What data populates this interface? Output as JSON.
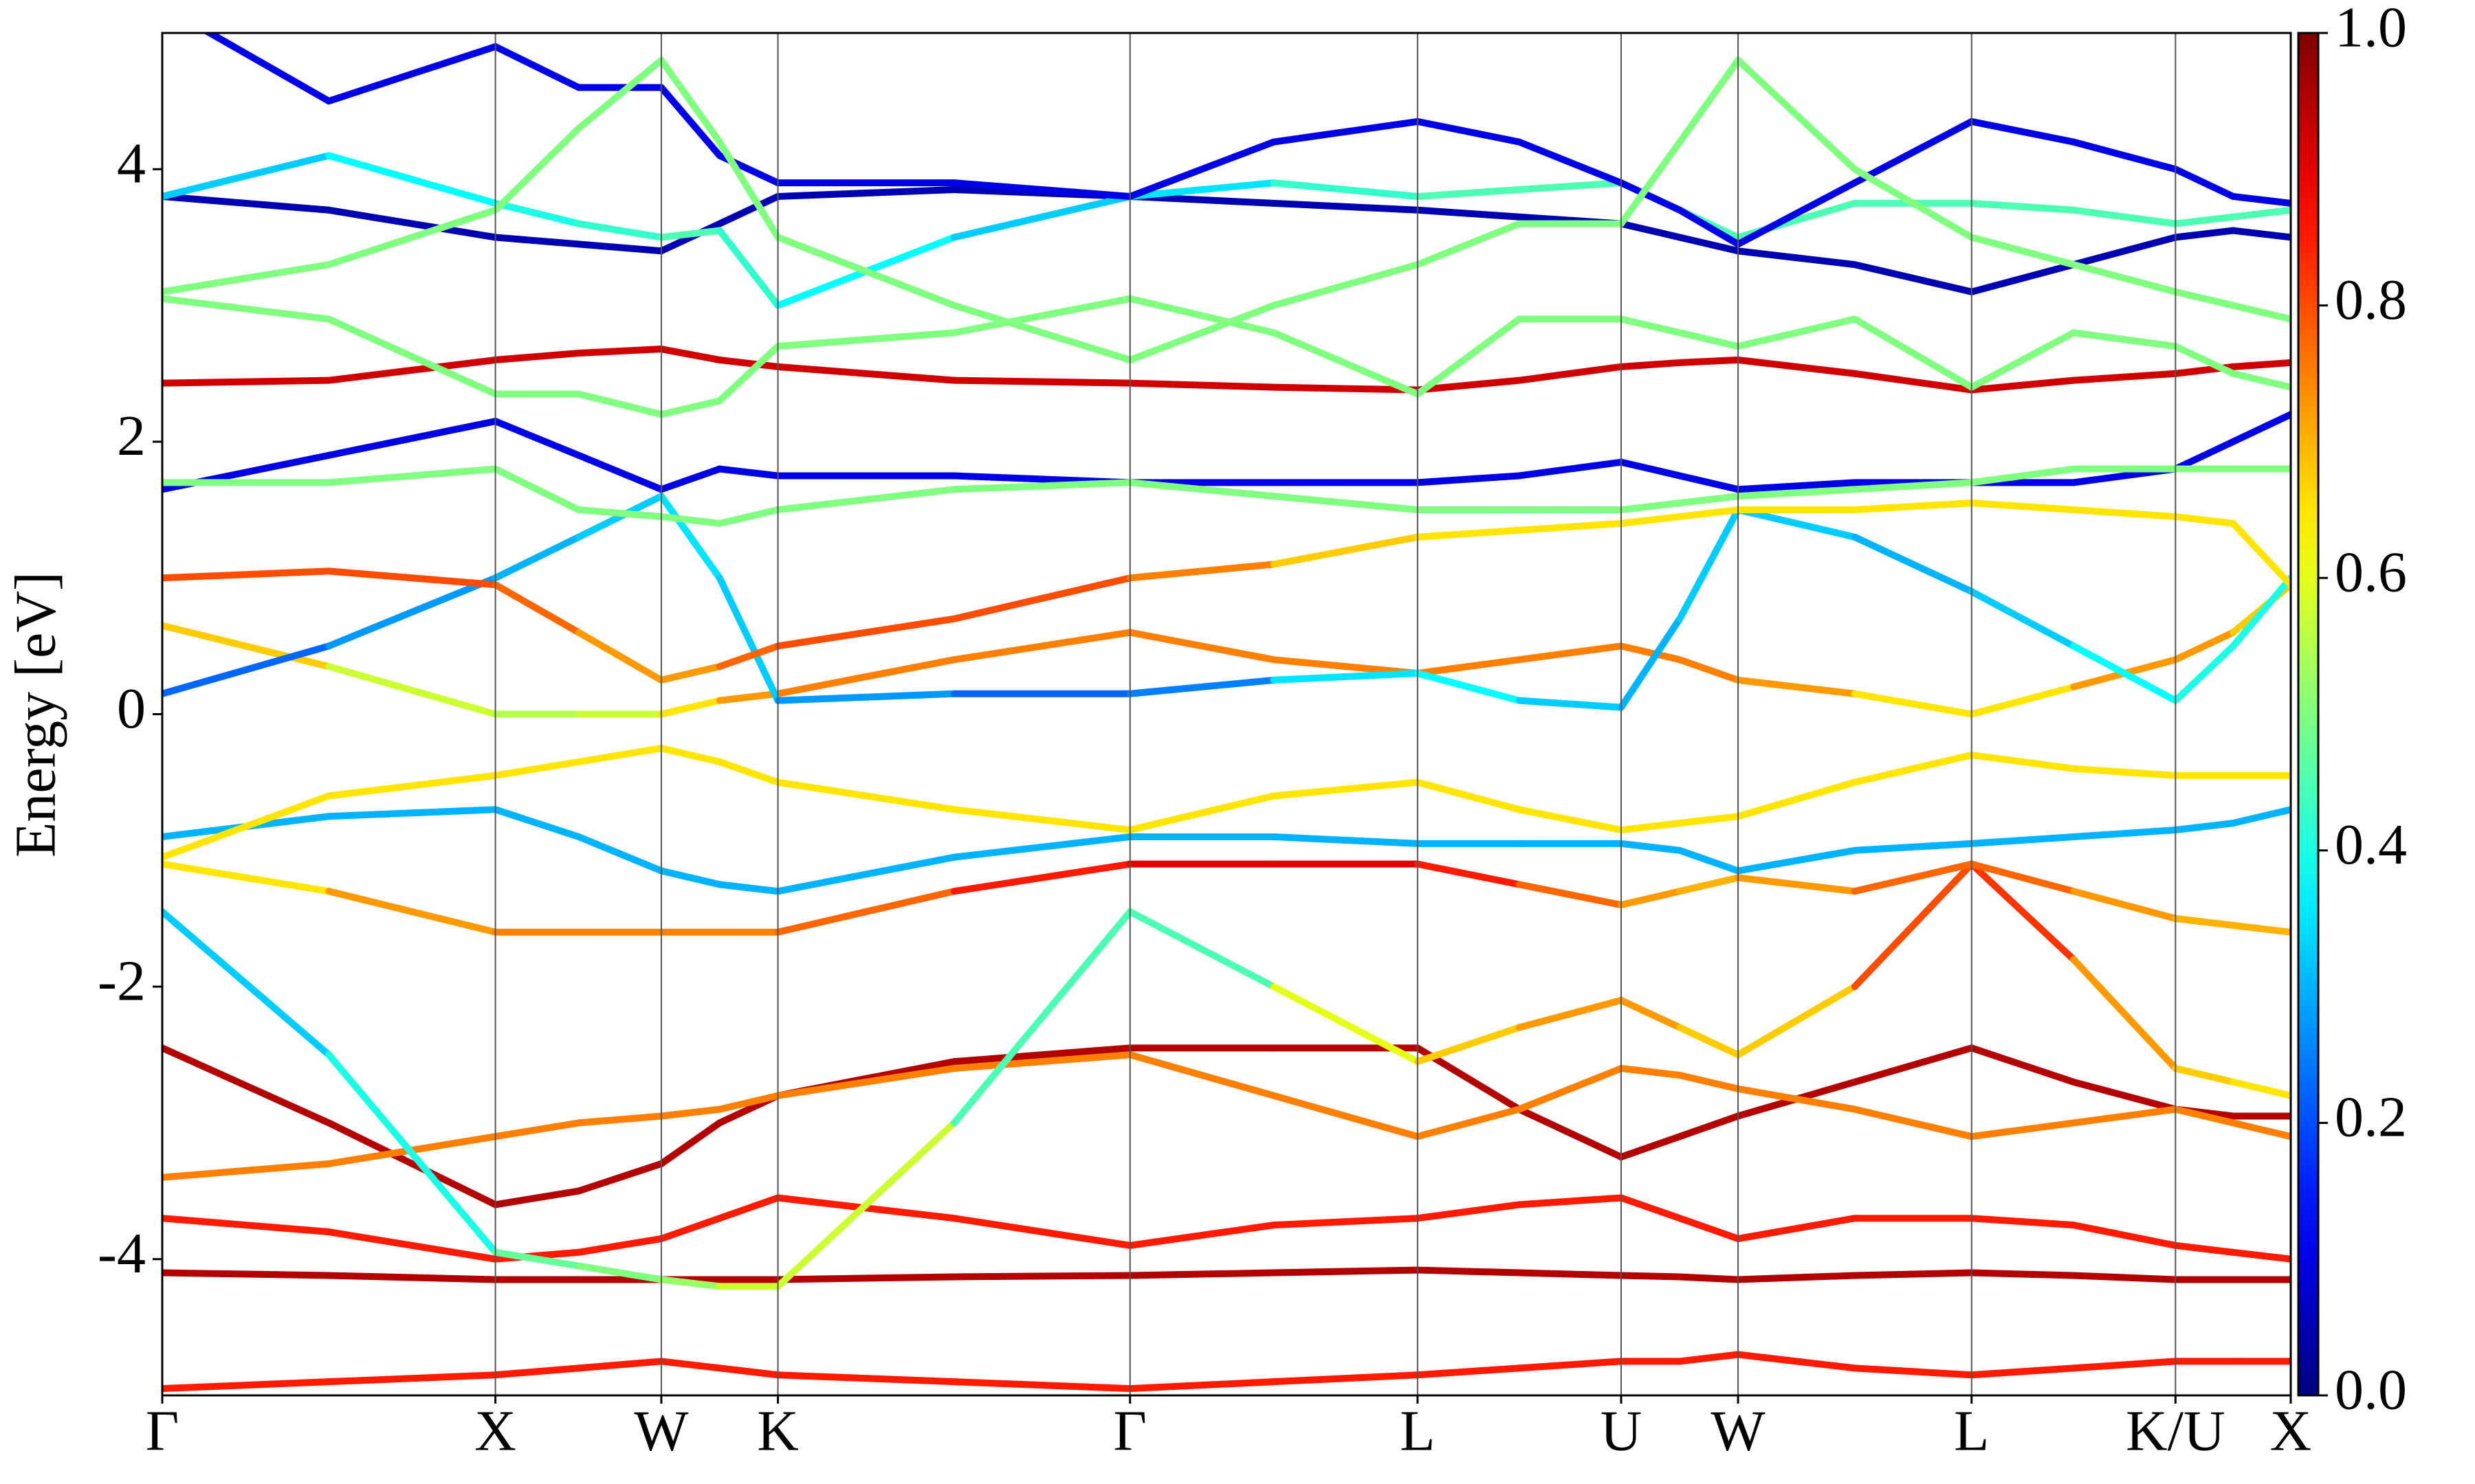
{
  "chart_data": {
    "type": "bands",
    "ylabel": "Energy [eV]",
    "xlim": [
      0,
      6.389
    ],
    "ylim": [
      -5,
      5
    ],
    "yticks": [
      -4,
      -2,
      0,
      2,
      4
    ],
    "xticks": [
      {
        "value": 0,
        "label": "Γ"
      },
      {
        "value": 1.0,
        "label": "X"
      },
      {
        "value": 1.498,
        "label": "W"
      },
      {
        "value": 1.848,
        "label": "K"
      },
      {
        "value": 2.905,
        "label": "Γ"
      },
      {
        "value": 3.768,
        "label": "L"
      },
      {
        "value": 4.379,
        "label": "U"
      },
      {
        "value": 4.73,
        "label": "W"
      },
      {
        "value": 5.431,
        "label": "L"
      },
      {
        "value": 6.043,
        "label": "K/U"
      },
      {
        "value": 6.389,
        "label": "X"
      }
    ],
    "colormap": "jet",
    "clim": [
      0,
      1
    ],
    "cticks": [
      {
        "value": 0,
        "label": "0.0"
      },
      {
        "value": 0.2,
        "label": "0.2"
      },
      {
        "value": 0.4,
        "label": "0.4"
      },
      {
        "value": 0.6,
        "label": "0.6"
      },
      {
        "value": 0.8,
        "label": "0.8"
      },
      {
        "value": 1,
        "label": "1.0"
      }
    ],
    "x": [
      0,
      0.5,
      1.0,
      1.25,
      1.498,
      1.673,
      1.848,
      2.377,
      2.905,
      3.336,
      3.768,
      4.073,
      4.379,
      4.555,
      4.73,
      5.08,
      5.431,
      5.737,
      6.043,
      6.216,
      6.389
    ],
    "series": [
      {
        "values": [
          -4.95,
          -4.9,
          -4.85,
          -4.8,
          -4.75,
          -4.8,
          -4.85,
          -4.9,
          -4.95,
          -4.9,
          -4.85,
          -4.8,
          -4.75,
          -4.75,
          -4.7,
          -4.8,
          -4.85,
          -4.8,
          -4.75,
          -4.75,
          -4.75
        ],
        "weights": [
          0.85,
          0.85,
          0.85,
          0.85,
          0.85,
          0.85,
          0.85,
          0.85,
          0.85,
          0.85,
          0.85,
          0.85,
          0.85,
          0.85,
          0.85,
          0.85,
          0.85,
          0.85,
          0.85,
          0.85,
          0.85
        ]
      },
      {
        "values": [
          -4.1,
          -4.12,
          -4.15,
          -4.15,
          -4.15,
          -4.15,
          -4.15,
          -4.13,
          -4.12,
          -4.1,
          -4.08,
          -4.1,
          -4.12,
          -4.13,
          -4.15,
          -4.12,
          -4.1,
          -4.12,
          -4.15,
          -4.15,
          -4.15
        ],
        "weights": [
          0.95,
          0.95,
          0.95,
          0.95,
          0.95,
          0.95,
          0.95,
          0.95,
          0.95,
          0.95,
          0.95,
          0.95,
          0.95,
          0.95,
          0.95,
          0.95,
          0.95,
          0.95,
          0.95,
          0.95,
          0.95
        ]
      },
      {
        "values": [
          -3.7,
          -3.8,
          -4.0,
          -3.95,
          -3.85,
          -3.7,
          -3.55,
          -3.7,
          -3.9,
          -3.75,
          -3.7,
          -3.6,
          -3.55,
          -3.7,
          -3.85,
          -3.7,
          -3.7,
          -3.75,
          -3.9,
          -3.95,
          -4.0
        ],
        "weights": [
          0.85,
          0.85,
          0.85,
          0.85,
          0.85,
          0.85,
          0.85,
          0.85,
          0.85,
          0.85,
          0.85,
          0.85,
          0.85,
          0.85,
          0.85,
          0.85,
          0.85,
          0.85,
          0.85,
          0.85,
          0.85
        ]
      },
      {
        "values": [
          -2.45,
          -3.0,
          -3.6,
          -3.5,
          -3.3,
          -3.0,
          -2.8,
          -2.55,
          -2.45,
          -2.45,
          -2.45,
          -2.9,
          -3.25,
          -3.1,
          -2.95,
          -2.7,
          -2.45,
          -2.7,
          -2.9,
          -2.95,
          -2.95
        ],
        "weights": [
          0.95,
          0.95,
          0.95,
          0.95,
          0.95,
          0.95,
          0.95,
          0.95,
          0.95,
          0.95,
          0.95,
          0.95,
          0.95,
          0.95,
          0.95,
          0.95,
          0.95,
          0.95,
          0.95,
          0.95,
          0.95
        ]
      },
      {
        "values": [
          -3.4,
          -3.3,
          -3.1,
          -3.0,
          -2.95,
          -2.9,
          -2.8,
          -2.6,
          -2.5,
          -2.8,
          -3.1,
          -2.9,
          -2.6,
          -2.65,
          -2.75,
          -2.9,
          -3.1,
          -3.0,
          -2.9,
          -3.0,
          -3.1
        ],
        "weights": [
          0.75,
          0.75,
          0.75,
          0.75,
          0.75,
          0.75,
          0.75,
          0.75,
          0.75,
          0.75,
          0.75,
          0.75,
          0.75,
          0.75,
          0.75,
          0.75,
          0.75,
          0.75,
          0.75,
          0.75,
          0.75
        ]
      },
      {
        "values": [
          -1.45,
          -2.5,
          -3.95,
          -4.05,
          -4.15,
          -4.2,
          -4.2,
          -3.0,
          -1.45,
          -2.0,
          -2.55,
          -2.3,
          -2.1,
          -2.3,
          -2.5,
          -2.0,
          -1.1,
          -1.8,
          -2.6,
          -2.7,
          -2.8
        ],
        "weights": [
          0.3,
          0.35,
          0.45,
          0.5,
          0.5,
          0.55,
          0.6,
          0.55,
          0.35,
          0.55,
          0.65,
          0.7,
          0.75,
          0.7,
          0.65,
          0.7,
          0.9,
          0.75,
          0.7,
          0.65,
          0.65
        ]
      },
      {
        "values": [
          -1.1,
          -1.3,
          -1.6,
          -1.6,
          -1.6,
          -1.6,
          -1.6,
          -1.3,
          -1.1,
          -1.1,
          -1.1,
          -1.25,
          -1.4,
          -1.3,
          -1.2,
          -1.3,
          -1.1,
          -1.3,
          -1.5,
          -1.55,
          -1.6
        ],
        "weights": [
          0.6,
          0.7,
          0.75,
          0.75,
          0.75,
          0.75,
          0.75,
          0.8,
          0.9,
          0.9,
          0.9,
          0.8,
          0.75,
          0.7,
          0.7,
          0.75,
          0.8,
          0.75,
          0.7,
          0.7,
          0.7
        ]
      },
      {
        "values": [
          -0.9,
          -0.75,
          -0.7,
          -0.9,
          -1.15,
          -1.25,
          -1.3,
          -1.05,
          -0.9,
          -0.9,
          -0.95,
          -0.95,
          -0.95,
          -1.0,
          -1.15,
          -1.0,
          -0.95,
          -0.9,
          -0.85,
          -0.8,
          -0.7
        ],
        "weights": [
          0.3,
          0.3,
          0.3,
          0.3,
          0.3,
          0.3,
          0.3,
          0.3,
          0.3,
          0.3,
          0.3,
          0.3,
          0.3,
          0.3,
          0.3,
          0.3,
          0.3,
          0.3,
          0.3,
          0.3,
          0.3
        ]
      },
      {
        "values": [
          -1.05,
          -0.6,
          -0.45,
          -0.35,
          -0.25,
          -0.35,
          -0.5,
          -0.7,
          -0.85,
          -0.6,
          -0.5,
          -0.7,
          -0.85,
          -0.8,
          -0.75,
          -0.5,
          -0.3,
          -0.4,
          -0.45,
          -0.45,
          -0.45
        ],
        "weights": [
          0.65,
          0.65,
          0.65,
          0.65,
          0.65,
          0.65,
          0.65,
          0.65,
          0.65,
          0.65,
          0.65,
          0.65,
          0.65,
          0.65,
          0.65,
          0.65,
          0.65,
          0.65,
          0.65,
          0.65,
          0.65
        ]
      },
      {
        "values": [
          0.65,
          0.35,
          0.0,
          0.0,
          0.0,
          0.1,
          0.15,
          0.4,
          0.6,
          0.4,
          0.3,
          0.4,
          0.5,
          0.4,
          0.25,
          0.15,
          0.0,
          0.2,
          0.4,
          0.6,
          0.95
        ],
        "weights": [
          0.75,
          0.6,
          0.55,
          0.55,
          0.6,
          0.7,
          0.75,
          0.75,
          0.75,
          0.75,
          0.75,
          0.75,
          0.75,
          0.75,
          0.75,
          0.7,
          0.6,
          0.7,
          0.75,
          0.7,
          0.65
        ]
      },
      {
        "values": [
          0.15,
          0.5,
          1.0,
          1.3,
          1.6,
          1.0,
          0.1,
          0.15,
          0.15,
          0.25,
          0.3,
          0.1,
          0.05,
          0.7,
          1.5,
          1.3,
          0.9,
          0.5,
          0.1,
          0.5,
          1.0
        ],
        "weights": [
          0.2,
          0.25,
          0.3,
          0.3,
          0.35,
          0.35,
          0.3,
          0.25,
          0.2,
          0.3,
          0.4,
          0.35,
          0.3,
          0.3,
          0.35,
          0.3,
          0.3,
          0.35,
          0.4,
          0.4,
          0.4
        ]
      },
      {
        "values": [
          1.0,
          1.05,
          0.95,
          0.6,
          0.25,
          0.35,
          0.5,
          0.7,
          1.0,
          1.1,
          1.3,
          1.35,
          1.4,
          1.45,
          1.5,
          1.5,
          1.55,
          1.5,
          1.45,
          1.4,
          0.95
        ],
        "weights": [
          0.8,
          0.8,
          0.8,
          0.75,
          0.7,
          0.75,
          0.8,
          0.8,
          0.8,
          0.7,
          0.65,
          0.65,
          0.65,
          0.65,
          0.65,
          0.65,
          0.65,
          0.65,
          0.65,
          0.65,
          0.65
        ]
      },
      {
        "values": [
          1.65,
          1.9,
          2.15,
          1.9,
          1.65,
          1.8,
          1.75,
          1.75,
          1.7,
          1.7,
          1.7,
          1.75,
          1.85,
          1.75,
          1.65,
          1.7,
          1.7,
          1.7,
          1.8,
          2.0,
          2.2
        ],
        "weights": [
          0.1,
          0.1,
          0.1,
          0.1,
          0.1,
          0.1,
          0.1,
          0.1,
          0.1,
          0.1,
          0.1,
          0.1,
          0.1,
          0.1,
          0.1,
          0.1,
          0.1,
          0.1,
          0.1,
          0.1,
          0.1
        ]
      },
      {
        "values": [
          1.7,
          1.7,
          1.8,
          1.5,
          1.45,
          1.4,
          1.5,
          1.65,
          1.7,
          1.6,
          1.5,
          1.5,
          1.5,
          1.55,
          1.6,
          1.65,
          1.7,
          1.8,
          1.8,
          1.8,
          1.8
        ],
        "weights": [
          0.5,
          0.5,
          0.5,
          0.5,
          0.5,
          0.5,
          0.5,
          0.5,
          0.5,
          0.5,
          0.5,
          0.5,
          0.5,
          0.5,
          0.5,
          0.5,
          0.5,
          0.5,
          0.5,
          0.5,
          0.5
        ]
      },
      {
        "values": [
          2.43,
          2.45,
          2.6,
          2.65,
          2.68,
          2.6,
          2.55,
          2.45,
          2.43,
          2.4,
          2.38,
          2.45,
          2.55,
          2.58,
          2.6,
          2.5,
          2.38,
          2.45,
          2.5,
          2.55,
          2.58
        ],
        "weights": [
          0.92,
          0.92,
          0.92,
          0.92,
          0.92,
          0.92,
          0.92,
          0.92,
          0.92,
          0.92,
          0.92,
          0.92,
          0.92,
          0.92,
          0.92,
          0.92,
          0.92,
          0.92,
          0.92,
          0.92,
          0.92
        ]
      },
      {
        "values": [
          3.05,
          2.9,
          2.35,
          2.35,
          2.2,
          2.3,
          2.7,
          2.8,
          3.05,
          2.8,
          2.35,
          2.9,
          2.9,
          2.8,
          2.7,
          2.9,
          2.4,
          2.8,
          2.7,
          2.5,
          2.4
        ],
        "weights": [
          0.5,
          0.5,
          0.5,
          0.5,
          0.5,
          0.5,
          0.5,
          0.5,
          0.5,
          0.5,
          0.5,
          0.5,
          0.5,
          0.5,
          0.5,
          0.5,
          0.5,
          0.5,
          0.5,
          0.5,
          0.5
        ]
      },
      {
        "values": [
          3.8,
          3.7,
          3.5,
          3.45,
          3.4,
          3.6,
          3.8,
          3.85,
          3.8,
          3.75,
          3.7,
          3.65,
          3.6,
          3.5,
          3.4,
          3.3,
          3.1,
          3.3,
          3.5,
          3.55,
          3.5
        ],
        "weights": [
          0.05,
          0.05,
          0.05,
          0.05,
          0.05,
          0.05,
          0.05,
          0.05,
          0.05,
          0.05,
          0.05,
          0.05,
          0.05,
          0.05,
          0.05,
          0.05,
          0.05,
          0.05,
          0.05,
          0.05,
          0.05
        ]
      },
      {
        "values": [
          3.8,
          4.1,
          3.75,
          3.6,
          3.5,
          3.55,
          3.0,
          3.5,
          3.8,
          3.9,
          3.8,
          3.85,
          3.9,
          3.7,
          3.5,
          3.75,
          3.75,
          3.7,
          3.6,
          3.65,
          3.7
        ],
        "weights": [
          0.3,
          0.35,
          0.4,
          0.4,
          0.45,
          0.45,
          0.4,
          0.35,
          0.3,
          0.4,
          0.45,
          0.45,
          0.45,
          0.45,
          0.45,
          0.45,
          0.45,
          0.45,
          0.45,
          0.45,
          0.45
        ]
      },
      {
        "values": [
          5.2,
          4.5,
          4.9,
          4.6,
          4.6,
          4.1,
          3.9,
          3.9,
          3.8,
          4.2,
          4.35,
          4.2,
          3.9,
          3.7,
          3.45,
          3.9,
          4.35,
          4.2,
          4.0,
          3.8,
          3.75
        ],
        "weights": [
          0.1,
          0.1,
          0.1,
          0.1,
          0.1,
          0.1,
          0.1,
          0.1,
          0.1,
          0.1,
          0.1,
          0.1,
          0.1,
          0.1,
          0.1,
          0.1,
          0.1,
          0.1,
          0.1,
          0.1,
          0.1
        ]
      },
      {
        "values": [
          3.1,
          3.3,
          3.7,
          4.3,
          4.8,
          4.2,
          3.5,
          3.0,
          2.6,
          3.0,
          3.3,
          3.6,
          3.6,
          4.2,
          4.8,
          4.0,
          3.5,
          3.3,
          3.1,
          3.0,
          2.9
        ],
        "weights": [
          0.5,
          0.5,
          0.5,
          0.5,
          0.5,
          0.5,
          0.5,
          0.5,
          0.5,
          0.5,
          0.5,
          0.5,
          0.5,
          0.5,
          0.5,
          0.5,
          0.5,
          0.5,
          0.5,
          0.5,
          0.5
        ]
      }
    ]
  }
}
